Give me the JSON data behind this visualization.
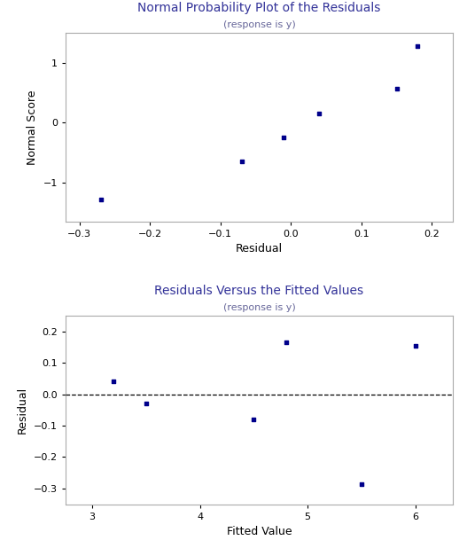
{
  "plot1": {
    "title": "Normal Probability Plot of the Residuals",
    "subtitle": "(response is y)",
    "xlabel": "Residual",
    "ylabel": "Normal Score",
    "points_x": [
      -0.27,
      -0.07,
      -0.01,
      0.04,
      0.15,
      0.18
    ],
    "points_y": [
      -1.28,
      -0.64,
      -0.24,
      0.16,
      0.57,
      1.28
    ],
    "xlim": [
      -0.32,
      0.23
    ],
    "ylim": [
      -1.65,
      1.5
    ],
    "xticks": [
      -0.3,
      -0.2,
      -0.1,
      0.0,
      0.1,
      0.2
    ],
    "yticks": [
      -1,
      0,
      1
    ]
  },
  "plot2": {
    "title": "Residuals Versus the Fitted Values",
    "subtitle": "(response is y)",
    "xlabel": "Fitted Value",
    "ylabel": "Residual",
    "points_x": [
      3.2,
      3.5,
      4.5,
      4.8,
      5.5,
      6.0
    ],
    "points_y": [
      0.04,
      -0.03,
      -0.08,
      0.165,
      -0.285,
      0.155
    ],
    "xlim": [
      2.75,
      6.35
    ],
    "ylim": [
      -0.35,
      0.25
    ],
    "xticks": [
      3,
      4,
      5,
      6
    ],
    "yticks": [
      -0.3,
      -0.2,
      -0.1,
      0.0,
      0.1,
      0.2
    ],
    "hline_y": 0.0
  },
  "point_color": "#00008B",
  "point_size": 12,
  "title_color": "#333399",
  "subtitle_color": "#666699",
  "axis_color": "#aaaaaa",
  "bg_color": "#ffffff",
  "plot_bg_color": "#ffffff"
}
